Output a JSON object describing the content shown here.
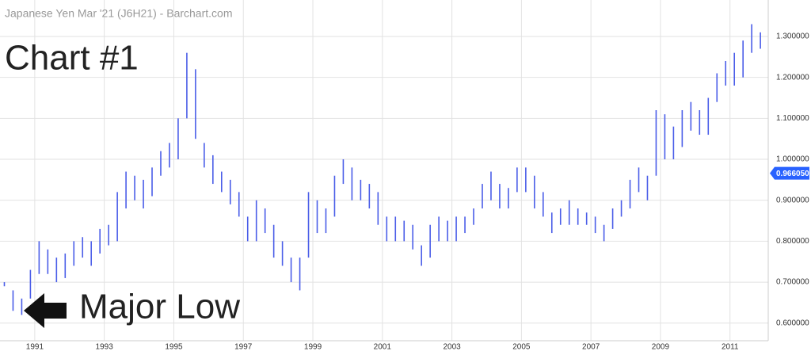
{
  "chart_data": {
    "type": "range-bar",
    "title": "Japanese Yen Mar '21 (J6H21) - Barchart.com",
    "annotations": [
      "Chart #1",
      "Major Low"
    ],
    "color": "#4a5de8",
    "grid": true,
    "last_price": {
      "value": 0.96605,
      "label": "0.966050"
    },
    "xlim": [
      1990,
      2012.1
    ],
    "xticks": [
      1991,
      1993,
      1995,
      1997,
      1999,
      2001,
      2003,
      2005,
      2007,
      2009,
      2011
    ],
    "ylim": [
      0.557,
      1.389
    ],
    "yticks": [
      {
        "value": 0.6,
        "label": "0.600000"
      },
      {
        "value": 0.7,
        "label": "0.700000"
      },
      {
        "value": 0.8,
        "label": "0.800000"
      },
      {
        "value": 0.9,
        "label": "0.900000"
      },
      {
        "value": 1.0,
        "label": "1.000000"
      },
      {
        "value": 1.1,
        "label": "1.100000"
      },
      {
        "value": 1.2,
        "label": "1.200000"
      },
      {
        "value": 1.3,
        "label": "1.300000"
      }
    ],
    "x": [
      1990.125,
      1990.375,
      1990.625,
      1990.875,
      1991.125,
      1991.375,
      1991.625,
      1991.875,
      1992.125,
      1992.375,
      1992.625,
      1992.875,
      1993.125,
      1993.375,
      1993.625,
      1993.875,
      1994.125,
      1994.375,
      1994.625,
      1994.875,
      1995.125,
      1995.375,
      1995.625,
      1995.875,
      1996.125,
      1996.375,
      1996.625,
      1996.875,
      1997.125,
      1997.375,
      1997.625,
      1997.875,
      1998.125,
      1998.375,
      1998.625,
      1998.875,
      1999.125,
      1999.375,
      1999.625,
      1999.875,
      2000.125,
      2000.375,
      2000.625,
      2000.875,
      2001.125,
      2001.375,
      2001.625,
      2001.875,
      2002.125,
      2002.375,
      2002.625,
      2002.875,
      2003.125,
      2003.375,
      2003.625,
      2003.875,
      2004.125,
      2004.375,
      2004.625,
      2004.875,
      2005.125,
      2005.375,
      2005.625,
      2005.875,
      2006.125,
      2006.375,
      2006.625,
      2006.875,
      2007.125,
      2007.375,
      2007.625,
      2007.875,
      2008.125,
      2008.375,
      2008.625,
      2008.875,
      2009.125,
      2009.375,
      2009.625,
      2009.875,
      2010.125,
      2010.375,
      2010.625,
      2010.875,
      2011.125,
      2011.375,
      2011.625,
      2011.875
    ],
    "low": [
      0.69,
      0.63,
      0.62,
      0.66,
      0.72,
      0.72,
      0.7,
      0.71,
      0.74,
      0.76,
      0.74,
      0.77,
      0.79,
      0.8,
      0.88,
      0.9,
      0.88,
      0.91,
      0.96,
      0.98,
      1.0,
      1.1,
      1.05,
      0.98,
      0.94,
      0.92,
      0.89,
      0.86,
      0.8,
      0.8,
      0.82,
      0.76,
      0.74,
      0.7,
      0.68,
      0.76,
      0.82,
      0.82,
      0.86,
      0.94,
      0.9,
      0.9,
      0.88,
      0.84,
      0.8,
      0.8,
      0.8,
      0.78,
      0.74,
      0.76,
      0.8,
      0.8,
      0.8,
      0.82,
      0.84,
      0.88,
      0.9,
      0.88,
      0.88,
      0.92,
      0.92,
      0.88,
      0.86,
      0.82,
      0.84,
      0.84,
      0.84,
      0.84,
      0.82,
      0.8,
      0.83,
      0.86,
      0.88,
      0.92,
      0.9,
      0.96,
      1.0,
      1.0,
      1.03,
      1.07,
      1.06,
      1.06,
      1.14,
      1.18,
      1.18,
      1.2,
      1.26,
      1.27
    ],
    "high": [
      0.7,
      0.68,
      0.66,
      0.73,
      0.8,
      0.78,
      0.76,
      0.77,
      0.8,
      0.81,
      0.8,
      0.83,
      0.84,
      0.92,
      0.97,
      0.96,
      0.95,
      0.98,
      1.02,
      1.04,
      1.1,
      1.26,
      1.22,
      1.04,
      1.01,
      0.97,
      0.95,
      0.92,
      0.86,
      0.9,
      0.88,
      0.84,
      0.8,
      0.76,
      0.76,
      0.92,
      0.9,
      0.88,
      0.96,
      1.0,
      0.98,
      0.95,
      0.94,
      0.92,
      0.86,
      0.86,
      0.85,
      0.84,
      0.79,
      0.84,
      0.86,
      0.85,
      0.86,
      0.86,
      0.88,
      0.94,
      0.97,
      0.94,
      0.93,
      0.98,
      0.98,
      0.96,
      0.92,
      0.87,
      0.88,
      0.9,
      0.88,
      0.87,
      0.86,
      0.84,
      0.88,
      0.9,
      0.95,
      0.98,
      0.96,
      1.12,
      1.11,
      1.08,
      1.12,
      1.14,
      1.12,
      1.15,
      1.21,
      1.24,
      1.26,
      1.29,
      1.33,
      1.31
    ]
  }
}
